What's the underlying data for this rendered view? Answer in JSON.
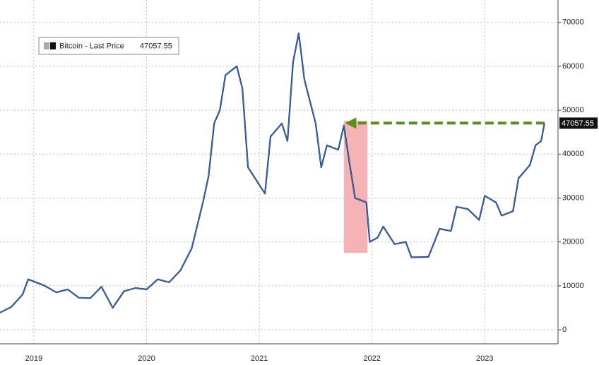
{
  "chart_data": {
    "type": "line",
    "series": [
      {
        "name": "Bitcoin - Last Price",
        "color": "#1f3a6b",
        "x": [
          2019.2,
          2019.3,
          2019.4,
          2019.45,
          2019.5,
          2019.55,
          2019.6,
          2019.7,
          2019.8,
          2019.9,
          2020.0,
          2020.1,
          2020.2,
          2020.3,
          2020.4,
          2020.5,
          2020.6,
          2020.7,
          2020.8,
          2020.9,
          2021.0,
          2021.05,
          2021.1,
          2021.15,
          2021.2,
          2021.3,
          2021.35,
          2021.4,
          2021.45,
          2021.5,
          2021.55,
          2021.6,
          2021.7,
          2021.75,
          2021.8,
          2021.85,
          2021.9,
          2022.0,
          2022.05,
          2022.1,
          2022.2,
          2022.25,
          2022.3,
          2022.35,
          2022.45,
          2022.48,
          2022.55,
          2022.6,
          2022.7,
          2022.8,
          2022.85,
          2023.0,
          2023.1,
          2023.2,
          2023.25,
          2023.35,
          2023.45,
          2023.5,
          2023.6,
          2023.65,
          2023.75,
          2023.8,
          2023.9,
          2023.95,
          2024.0,
          2024.03
        ],
        "values": [
          3900,
          5200,
          8000,
          11500,
          11000,
          10500,
          10000,
          8500,
          9200,
          7300,
          7200,
          9800,
          5000,
          8800,
          9500,
          9200,
          11500,
          10800,
          13500,
          18500,
          29000,
          35000,
          47000,
          50000,
          58000,
          60000,
          55000,
          37000,
          35000,
          33000,
          31000,
          44000,
          47000,
          43000,
          61000,
          67500,
          57000,
          47000,
          37000,
          42000,
          41000,
          46500,
          38000,
          30000,
          29000,
          20000,
          21000,
          23500,
          19500,
          20000,
          16500,
          16600,
          23000,
          22500,
          28000,
          27500,
          25000,
          30500,
          29000,
          26000,
          27000,
          34500,
          37500,
          42000,
          43000,
          47057.55
        ]
      }
    ],
    "xlim": [
      2019.2,
      2024.15
    ],
    "xticks": [
      {
        "value": 2019.5,
        "label": "2019"
      },
      {
        "value": 2020.5,
        "label": "2020"
      },
      {
        "value": 2021.5,
        "label": "2021"
      },
      {
        "value": 2022.5,
        "label": "2022"
      },
      {
        "value": 2023.5,
        "label": "2023"
      }
    ],
    "ylim": [
      -3200,
      75100
    ],
    "yticks": [
      0,
      10000,
      20000,
      30000,
      40000,
      50000,
      60000,
      70000
    ],
    "grid": true,
    "shaded_range": {
      "x": [
        2022.25,
        2022.46
      ],
      "y": [
        17500,
        47600
      ],
      "color": "#f4a6aa"
    },
    "arrow": {
      "x": [
        2024.03,
        2022.26
      ],
      "y": 47057.55,
      "color": "#5a8f1e"
    }
  }
}
